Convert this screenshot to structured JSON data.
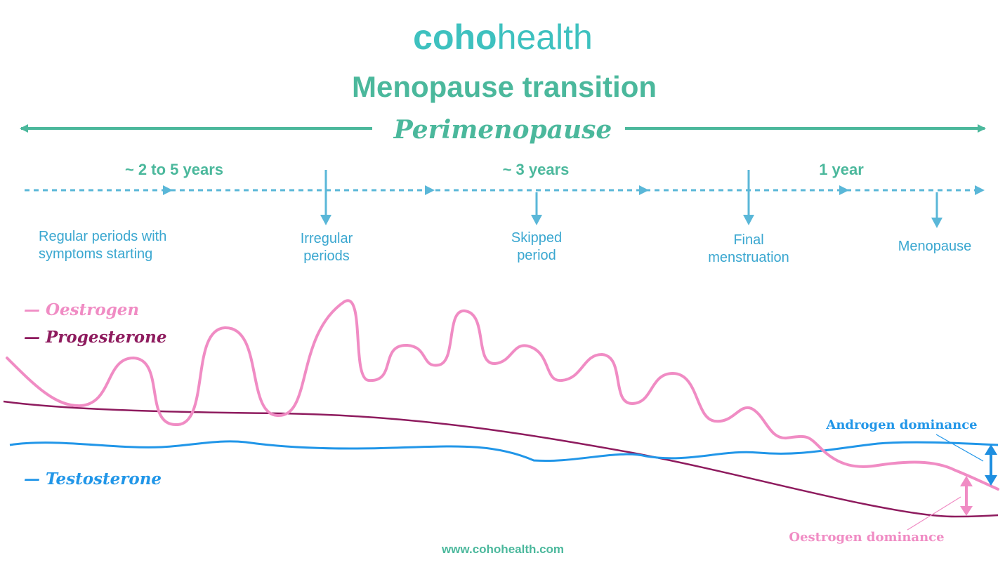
{
  "brand": {
    "logo_bold": "coho",
    "logo_light": "health"
  },
  "title": "Menopause transition",
  "phase": "Perimenopause",
  "durations": [
    "~ 2 to 5 years",
    "~ 3 years",
    "1 year"
  ],
  "milestones": [
    {
      "lines": [
        "Regular periods with",
        "symptoms starting"
      ]
    },
    {
      "lines": [
        "Irregular",
        "periods"
      ]
    },
    {
      "lines": [
        "Skipped",
        "period"
      ]
    },
    {
      "lines": [
        "Final",
        "menstruation"
      ]
    },
    {
      "lines": [
        "Menopause"
      ]
    }
  ],
  "legend": {
    "oestrogen": "— Oestrogen",
    "progesterone": "— Progesterone",
    "testosterone": "— Testosterone"
  },
  "annotations": {
    "androgen_dominance": "Androgen dominance",
    "oestrogen_dominance": "Oestrogen dominance"
  },
  "footer_url": "www.cohohealth.com",
  "colors": {
    "teal": "#4bb89c",
    "logo_teal": "#3ec1bf",
    "timeline_blue": "#5ab7d8",
    "oestrogen_pink": "#f08cc4",
    "progesterone_purple": "#8e1b5e",
    "testosterone_blue": "#2196e8"
  }
}
